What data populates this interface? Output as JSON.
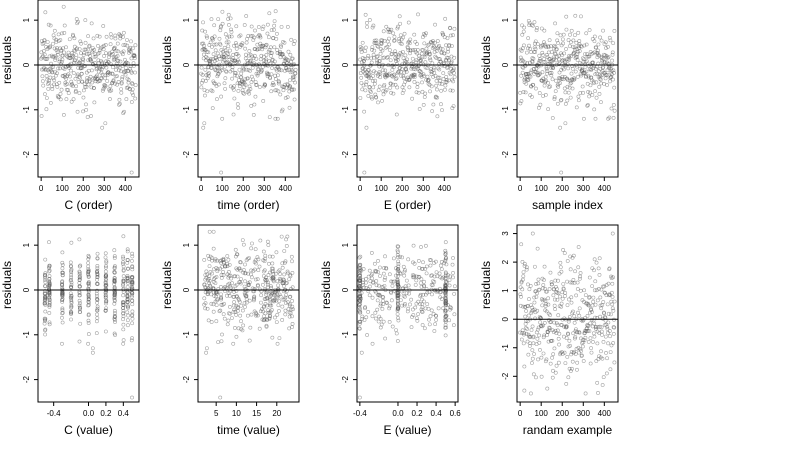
{
  "figure": {
    "ylabel": "residuals",
    "point_color": "#555555",
    "zero_line_color": "#000000"
  },
  "chart_data": [
    {
      "type": "scatter",
      "title": "",
      "xlabel": "C (order)",
      "ylabel": "residuals",
      "xlim": [
        -15,
        465
      ],
      "ylim": [
        -2.5,
        1.45
      ],
      "xticks": [
        0,
        100,
        200,
        300,
        400
      ],
      "xtick_labels": [
        "0",
        "100",
        "200",
        "300",
        "400"
      ],
      "yticks": [
        -2,
        -1,
        0,
        1
      ],
      "ytick_labels": [
        "-2",
        "-1",
        "0",
        "1"
      ],
      "zero_line": true,
      "x_kind": "index",
      "n": 450,
      "y_range": [
        -1.45,
        1.3
      ],
      "outliers": [
        [
          430,
          -2.4
        ],
        [
          290,
          -1.4
        ],
        [
          305,
          -1.3
        ]
      ]
    },
    {
      "type": "scatter",
      "title": "",
      "xlabel": "time (order)",
      "ylabel": "residuals",
      "xlim": [
        -15,
        465
      ],
      "ylim": [
        -2.5,
        1.45
      ],
      "xticks": [
        0,
        100,
        200,
        300,
        400
      ],
      "xtick_labels": [
        "0",
        "100",
        "200",
        "300",
        "400"
      ],
      "yticks": [
        -2,
        -1,
        0,
        1
      ],
      "ytick_labels": [
        "-2",
        "-1",
        "0",
        "1"
      ],
      "zero_line": true,
      "x_kind": "index",
      "n": 450,
      "y_range": [
        -1.2,
        1.3
      ],
      "outliers": [
        [
          95,
          -2.4
        ],
        [
          10,
          -1.4
        ],
        [
          15,
          -1.3
        ]
      ]
    },
    {
      "type": "scatter",
      "title": "",
      "xlabel": "E (order)",
      "ylabel": "residuals",
      "xlim": [
        -15,
        465
      ],
      "ylim": [
        -2.5,
        1.45
      ],
      "xticks": [
        0,
        100,
        200,
        300,
        400
      ],
      "xtick_labels": [
        "0",
        "100",
        "200",
        "300",
        "400"
      ],
      "yticks": [
        -2,
        -1,
        0,
        1
      ],
      "ytick_labels": [
        "-2",
        "-1",
        "0",
        "1"
      ],
      "zero_line": true,
      "x_kind": "index",
      "n": 450,
      "y_range": [
        -1.2,
        1.3
      ],
      "outliers": [
        [
          20,
          -2.4
        ],
        [
          30,
          -1.4
        ]
      ]
    },
    {
      "type": "scatter",
      "title": "",
      "xlabel": "sample index",
      "ylabel": "residuals",
      "xlim": [
        -15,
        465
      ],
      "ylim": [
        -2.5,
        1.45
      ],
      "xticks": [
        0,
        100,
        200,
        300,
        400
      ],
      "xtick_labels": [
        "0",
        "100",
        "200",
        "300",
        "400"
      ],
      "yticks": [
        -2,
        -1,
        0,
        1
      ],
      "ytick_labels": [
        "-2",
        "-1",
        "0",
        "1"
      ],
      "zero_line": true,
      "x_kind": "index",
      "n": 450,
      "y_range": [
        -1.2,
        1.3
      ],
      "outliers": [
        [
          195,
          -2.4
        ],
        [
          190,
          -1.4
        ],
        [
          215,
          -1.3
        ]
      ]
    },
    {
      "type": "scatter",
      "title": "",
      "xlabel": "C (value)",
      "ylabel": "residuals",
      "xlim": [
        -0.58,
        0.58
      ],
      "ylim": [
        -2.5,
        1.45
      ],
      "xticks": [
        -0.4,
        0.0,
        0.2,
        0.4
      ],
      "xtick_labels": [
        "-0.4",
        "0.0",
        "0.2",
        "0.4"
      ],
      "yticks": [
        -2,
        -1,
        0,
        1
      ],
      "ytick_labels": [
        "-2",
        "-1",
        "0",
        "1"
      ],
      "zero_line": true,
      "x_kind": "columns",
      "x_levels": [
        -0.5,
        -0.45,
        -0.3,
        -0.2,
        -0.1,
        0.0,
        0.1,
        0.2,
        0.3,
        0.4,
        0.45,
        0.5
      ],
      "n": 450,
      "y_range": [
        -1.2,
        1.3
      ],
      "outliers": [
        [
          0.5,
          -2.4
        ],
        [
          0.05,
          -1.4
        ],
        [
          0.05,
          -1.3
        ]
      ]
    },
    {
      "type": "scatter",
      "title": "",
      "xlabel": "time (value)",
      "ylabel": "residuals",
      "xlim": [
        0.5,
        25.5
      ],
      "ylim": [
        -2.5,
        1.45
      ],
      "xticks": [
        5,
        10,
        15,
        20
      ],
      "xtick_labels": [
        "5",
        "10",
        "15",
        "20"
      ],
      "yticks": [
        -2,
        -1,
        0,
        1
      ],
      "ytick_labels": [
        "-2",
        "-1",
        "0",
        "1"
      ],
      "zero_line": true,
      "x_kind": "continuous",
      "x_range": [
        2,
        24
      ],
      "n": 450,
      "y_range": [
        -1.2,
        1.3
      ],
      "outliers": [
        [
          6,
          -2.4
        ],
        [
          2.5,
          -1.4
        ],
        [
          2.7,
          -1.3
        ]
      ]
    },
    {
      "type": "scatter",
      "title": "",
      "xlabel": "E (value)",
      "ylabel": "residuals",
      "xlim": [
        -0.43,
        0.63
      ],
      "ylim": [
        -2.5,
        1.45
      ],
      "xticks": [
        -0.4,
        0.0,
        0.2,
        0.4,
        0.6
      ],
      "xtick_labels": [
        "-0.4",
        "0.0",
        "0.2",
        "0.4",
        "0.6"
      ],
      "yticks": [
        -2,
        -1,
        0,
        1
      ],
      "ytick_labels": [
        "-2",
        "-1",
        "0",
        "1"
      ],
      "zero_line": true,
      "x_kind": "mixed",
      "x_levels": [
        -0.4,
        0.0,
        0.5
      ],
      "x_range": [
        -0.4,
        0.6
      ],
      "n": 450,
      "y_range": [
        -1.2,
        1.3
      ],
      "outliers": [
        [
          -0.4,
          -2.4
        ],
        [
          -0.38,
          -1.4
        ]
      ]
    },
    {
      "type": "scatter",
      "title": "",
      "xlabel": "randam example",
      "ylabel": "residuals",
      "xlim": [
        -15,
        465
      ],
      "ylim": [
        -2.9,
        3.3
      ],
      "xticks": [
        0,
        100,
        200,
        300,
        400
      ],
      "xtick_labels": [
        "0",
        "100",
        "200",
        "300",
        "400"
      ],
      "yticks": [
        -2,
        -1,
        0,
        1,
        2,
        3
      ],
      "ytick_labels": [
        "-2",
        "-1",
        "0",
        "1",
        "2",
        "3"
      ],
      "zero_line": true,
      "x_kind": "index",
      "n": 450,
      "y_sd": 1.0,
      "outliers": [
        [
          440,
          3.0
        ],
        [
          60,
          3.0
        ],
        [
          20,
          -2.5
        ]
      ]
    }
  ]
}
